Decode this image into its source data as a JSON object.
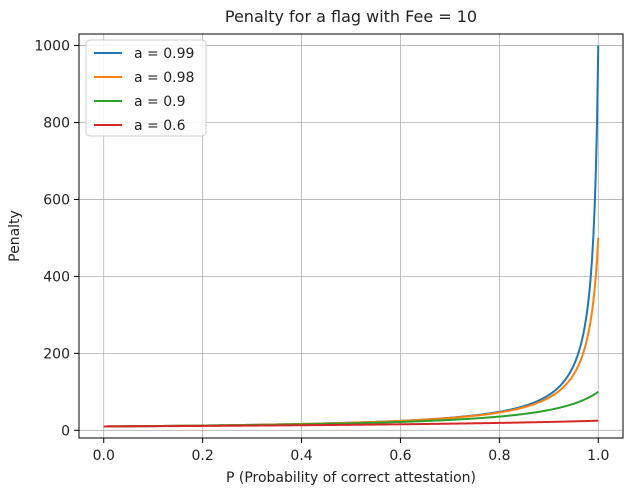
{
  "chart_data": {
    "type": "line",
    "title": "Penalty for a flag with Fee = 10",
    "xlabel": "P (Probability of correct attestation)",
    "ylabel": "Penalty",
    "xlim": [
      -0.05,
      1.05
    ],
    "ylim": [
      -20,
      1030
    ],
    "xticks": [
      "0.0",
      "0.2",
      "0.4",
      "0.6",
      "0.8",
      "1.0"
    ],
    "yticks": [
      "0",
      "200",
      "400",
      "600",
      "800",
      "1000"
    ],
    "grid": true,
    "legend_position": "top-left",
    "series": [
      {
        "name": "a = 0.99",
        "color": "#1f77b4",
        "a": 0.99,
        "x": [
          0.0,
          0.2,
          0.4,
          0.6,
          0.8,
          0.9,
          0.95,
          0.98,
          1.0
        ],
        "values": [
          10.1,
          12.5,
          16.6,
          24.8,
          47.6,
          91.7,
          169.5,
          335.6,
          990
        ]
      },
      {
        "name": "a = 0.98",
        "color": "#ff7f0e",
        "a": 0.98,
        "x": [
          0.0,
          0.2,
          0.4,
          0.6,
          0.8,
          0.9,
          0.95,
          0.98,
          1.0
        ],
        "values": [
          10.2,
          12.7,
          16.9,
          25.3,
          47.2,
          84.8,
          144.9,
          250.0,
          500
        ]
      },
      {
        "name": "a = 0.9",
        "color": "#2ca02c",
        "a": 0.9,
        "x": [
          0.0,
          0.2,
          0.4,
          0.6,
          0.8,
          0.9,
          1.0
        ],
        "values": [
          11.1,
          14.1,
          19.2,
          29.4,
          35.7,
          52.6,
          100
        ]
      },
      {
        "name": "a = 0.6",
        "color": "#d62728",
        "a": 0.6,
        "x": [
          0.0,
          0.2,
          0.4,
          0.6,
          0.8,
          1.0
        ],
        "values": [
          10.0,
          11.3,
          13.9,
          16.7,
          20.0,
          25.0
        ]
      }
    ]
  }
}
